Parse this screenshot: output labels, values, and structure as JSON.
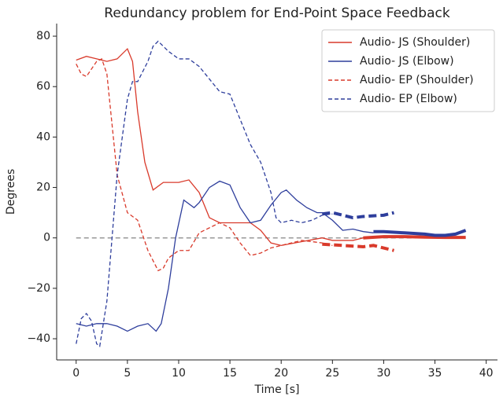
{
  "chart_data": {
    "type": "line",
    "title": "Redundancy problem for End-Point Space Feedback",
    "xlabel": "Time [s]",
    "ylabel": "Degrees",
    "xlim": [
      -1.9,
      41.1
    ],
    "ylim": [
      -48.4,
      85
    ],
    "xticks": [
      0,
      5,
      10,
      15,
      20,
      25,
      30,
      35,
      40
    ],
    "yticks": [
      {
        "value": -40,
        "label": "−40"
      },
      {
        "value": -20,
        "label": "−20"
      },
      0,
      20,
      40,
      60,
      80
    ],
    "legend": "upper right",
    "hlines": [
      {
        "y": 0,
        "xmin": 0,
        "xmax": 38,
        "color": "#999999",
        "linestyle": "dashed"
      }
    ],
    "series": [
      {
        "name": "Audio- JS (Shoulder)",
        "color": "#d93a2b",
        "linestyle": "solid",
        "linewidth": 1.3,
        "x": [
          0,
          1,
          2,
          3,
          4,
          5,
          5.5,
          6,
          6.7,
          7.5,
          8.5,
          10,
          11,
          12,
          13,
          14,
          16,
          17,
          18,
          19,
          20,
          22,
          24,
          25,
          27,
          28,
          29
        ],
        "values": [
          70.5,
          72,
          71,
          70,
          71,
          75,
          70,
          50,
          30,
          19,
          22,
          22,
          23,
          18,
          8,
          6,
          6,
          6,
          3,
          -2,
          -3,
          -1.5,
          0,
          -1,
          -1,
          0,
          0
        ]
      },
      {
        "name": "Audio- JS (Elbow)",
        "color": "#2e3e9c",
        "linestyle": "solid",
        "linewidth": 1.3,
        "x": [
          0,
          1,
          2,
          3,
          4,
          5,
          6,
          7,
          7.8,
          8.3,
          9,
          9.7,
          10.5,
          11.5,
          12,
          13,
          14,
          15,
          16,
          17,
          18,
          19,
          20,
          20.5,
          21.5,
          22.5,
          23.5,
          24,
          25,
          26,
          27,
          28,
          29
        ],
        "values": [
          -34,
          -35,
          -34,
          -34,
          -35,
          -37,
          -35,
          -34,
          -37,
          -34,
          -20,
          0,
          15,
          12,
          14,
          20,
          22.5,
          21,
          12,
          6,
          7,
          13,
          18,
          19,
          15,
          12,
          10,
          10,
          7,
          3,
          3.5,
          2.5,
          2
        ]
      },
      {
        "name": "Audio- EP (Shoulder)",
        "color": "#d93a2b",
        "linestyle": "dashed",
        "linewidth": 1.3,
        "x": [
          0,
          0.5,
          1,
          2,
          2.5,
          3,
          3.5,
          4,
          5,
          6,
          7,
          8,
          8.5,
          9,
          10,
          11,
          12,
          13,
          14,
          15,
          16,
          17,
          18,
          19,
          20,
          22,
          24,
          25
        ],
        "values": [
          69,
          65,
          64,
          70,
          71,
          65,
          45,
          25,
          10,
          7,
          -5,
          -13,
          -12,
          -8,
          -5,
          -5,
          2,
          4,
          6,
          4,
          -2,
          -7,
          -6,
          -4,
          -3,
          -1,
          -2,
          -3
        ]
      },
      {
        "name": "Audio- EP (Elbow)",
        "color": "#2e3e9c",
        "linestyle": "dashed",
        "linewidth": 1.3,
        "x": [
          0,
          0.5,
          1,
          1.5,
          2,
          2.3,
          3,
          3.5,
          4,
          5,
          5.5,
          6,
          7,
          7.5,
          8,
          9,
          10,
          11,
          12,
          13,
          14,
          15,
          16,
          17,
          18,
          19,
          19.5,
          20,
          21,
          22,
          23,
          24,
          25
        ],
        "values": [
          -42,
          -32,
          -30,
          -33,
          -42,
          -43,
          -25,
          0,
          25,
          55,
          62,
          62,
          70,
          76,
          78,
          74,
          71,
          71,
          68,
          63,
          58,
          57,
          47,
          37,
          30,
          18,
          8,
          6,
          7,
          6,
          7,
          9,
          9.5
        ]
      },
      {
        "color": "#d93a2b",
        "linestyle": "solid",
        "linewidth": 4,
        "x": [
          28,
          30,
          32,
          34,
          36,
          38
        ],
        "values": [
          0,
          0.5,
          0.5,
          0.3,
          0.2,
          0.2
        ]
      },
      {
        "color": "#2e3e9c",
        "linestyle": "solid",
        "linewidth": 4,
        "x": [
          29,
          30,
          32,
          34,
          35,
          36,
          37,
          38
        ],
        "values": [
          2.5,
          2.5,
          2,
          1.5,
          1,
          1,
          1.5,
          3
        ]
      },
      {
        "color": "#d93a2b",
        "linestyle": "dashed",
        "linewidth": 4,
        "x": [
          24,
          26,
          28,
          29,
          30,
          31
        ],
        "values": [
          -2.5,
          -3,
          -3.5,
          -3,
          -4,
          -5
        ]
      },
      {
        "color": "#2e3e9c",
        "linestyle": "dashed",
        "linewidth": 4,
        "x": [
          24,
          25,
          26,
          27,
          28,
          30,
          31
        ],
        "values": [
          9.5,
          10,
          9,
          8,
          8.5,
          9,
          10
        ]
      }
    ]
  }
}
